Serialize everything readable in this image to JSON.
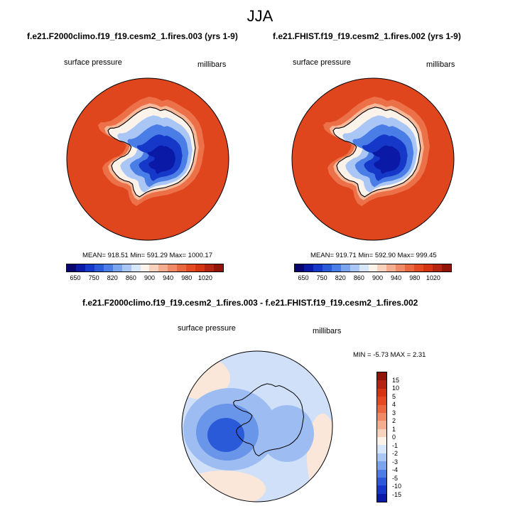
{
  "title": "JJA",
  "panel_left": {
    "run_title": "f.e21.F2000climo.f19_f19.cesm2_1.fires.003 (yrs 1-9)",
    "variable_label": "surface pressure",
    "units_label": "millibars",
    "stats": "MEAN= 918.51  Min= 591.29  Max= 1000.17"
  },
  "panel_right": {
    "run_title": "f.e21.FHIST.f19_f19.cesm2_1.fires.002 (yrs 1-9)",
    "variable_label": "surface pressure",
    "units_label": "millibars",
    "stats": "MEAN= 919.71  Min= 592.90  Max= 999.45"
  },
  "colorbar_top": {
    "ticks": [
      "650",
      "750",
      "820",
      "860",
      "900",
      "940",
      "980",
      "1020"
    ],
    "colors": [
      "#08066e",
      "#0a1aa6",
      "#1538c8",
      "#2a5ad8",
      "#4a7ee6",
      "#7aa4ee",
      "#aac6f4",
      "#d8e6fa",
      "#fbf2ea",
      "#f8d2bc",
      "#f5ad90",
      "#f08a66",
      "#ea6840",
      "#e34a22",
      "#d43412",
      "#b52410",
      "#921408"
    ]
  },
  "panel_diff": {
    "title": "f.e21.F2000climo.f19_f19.cesm2_1.fires.003 - f.e21.FHIST.f19_f19.cesm2_1.fires.002",
    "variable_label": "surface pressure",
    "units_label": "millibars",
    "stats": "MIN =  -5.73 MAX =   2.31"
  },
  "colorbar_diff": {
    "ticks": [
      "15",
      "10",
      "5",
      "4",
      "3",
      "2",
      "1",
      "0",
      "-1",
      "-2",
      "-3",
      "-4",
      "-5",
      "-10",
      "-15"
    ],
    "colors": [
      "#921408",
      "#b52410",
      "#d43412",
      "#e34a22",
      "#ea6840",
      "#f08a66",
      "#f5ad90",
      "#f8d2bc",
      "#fbf2ea",
      "#d8e6fa",
      "#aac6f4",
      "#7aa4ee",
      "#4a7ee6",
      "#2a5ad8",
      "#1538c8",
      "#0a1aa6"
    ]
  },
  "map_colors": {
    "ocean_high": "#e0461e",
    "ring_mid": "#ec7048",
    "ring_light": "#f6b898",
    "coast_white": "#fbf2ea",
    "ice_light": "#aac6f4",
    "ice_mid": "#4a7ee6",
    "ice_deep": "#1538c8",
    "ice_core": "#0a1aa6",
    "diff_base": "#cfe0f8",
    "diff_mid": "#9dbdf2",
    "diff_strong": "#6a96ea",
    "diff_core": "#2a5ad8",
    "diff_warm": "#fbe6da"
  }
}
